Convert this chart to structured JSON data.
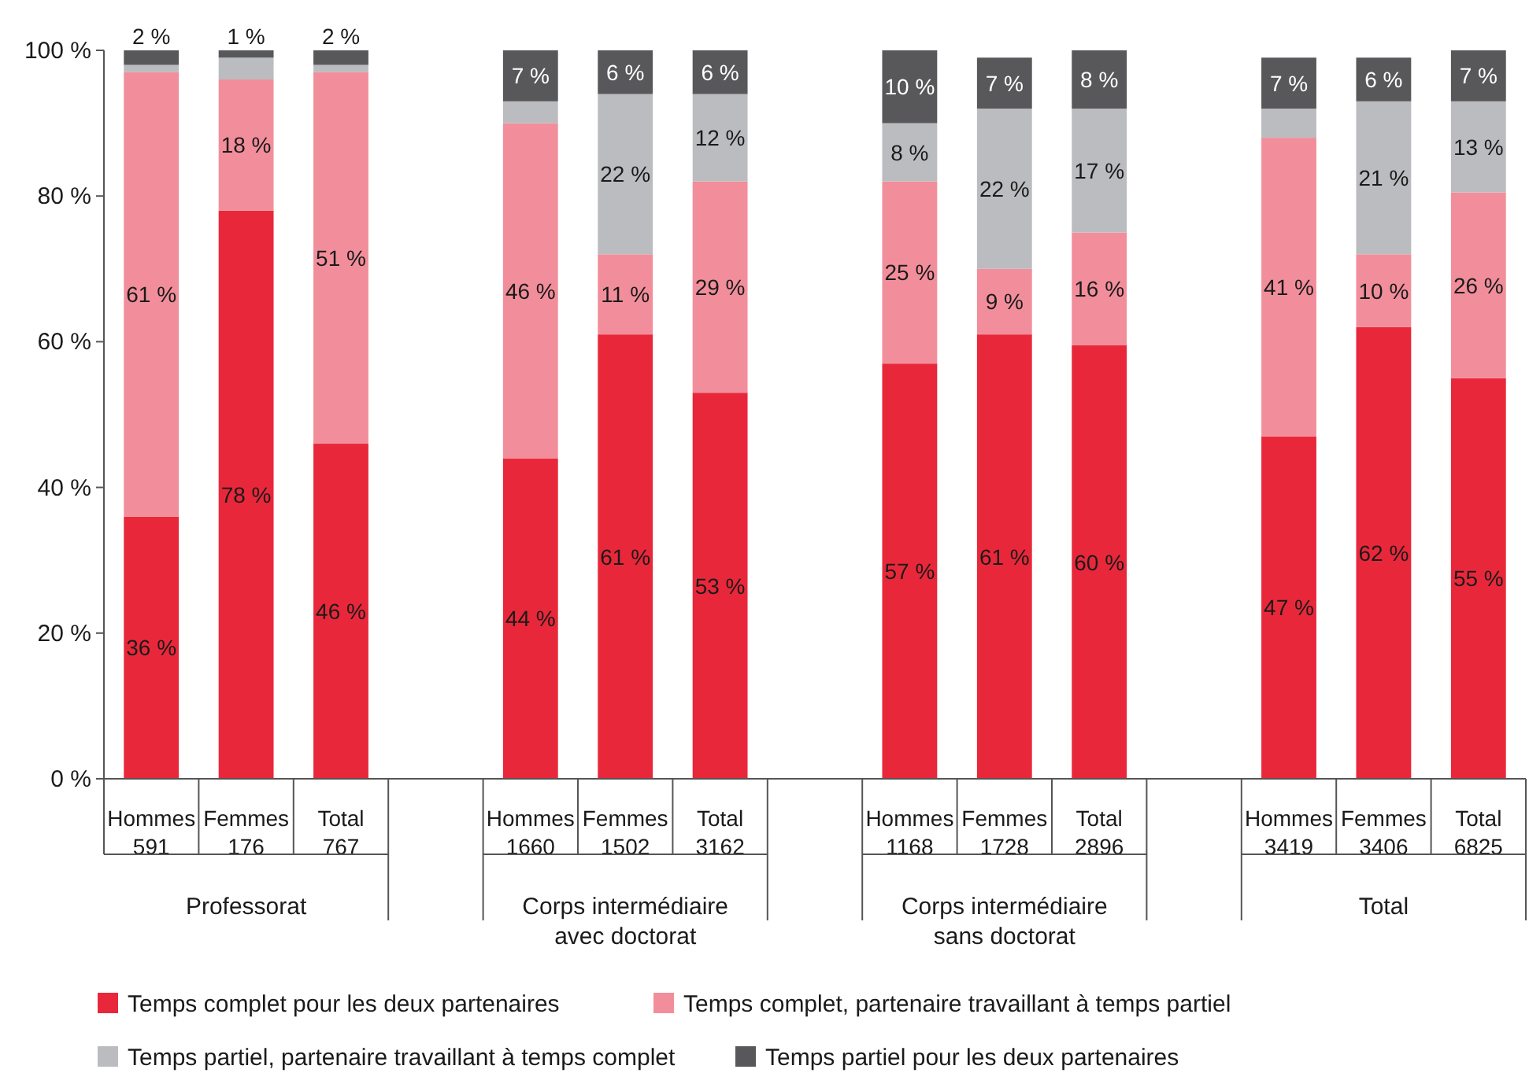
{
  "chart_data": {
    "type": "bar",
    "stacked": true,
    "categories": [
      "Hommes\n591",
      "Femmes\n176",
      "Total\n767",
      null,
      "Hommes\n1660",
      "Femmes\n1502",
      "Total\n3162",
      null,
      "Hommes\n1168",
      "Femmes\n1728",
      "Total\n2896",
      null,
      "Hommes\n3419",
      "Femmes\n3406",
      "Total\n6825"
    ],
    "series": [
      {
        "name": "Temps complet pour les deux partenaires",
        "color": "#e8283a",
        "values": [
          36,
          78,
          46,
          null,
          44,
          61,
          53,
          null,
          57,
          61,
          59.5,
          null,
          47,
          62,
          55
        ],
        "value_labels": [
          "36 %",
          "78 %",
          "46 %",
          null,
          "44 %",
          "61 %",
          "53 %",
          null,
          "57 %",
          "61 %",
          "60 %",
          null,
          "47 %",
          "62 %",
          "55 %"
        ]
      },
      {
        "name": "Temps complet, partenaire travaillant à temps partiel",
        "color": "#f28e9b",
        "values": [
          61,
          18,
          51,
          null,
          46,
          11,
          29,
          null,
          25,
          9,
          15.5,
          null,
          41,
          10,
          25.5
        ],
        "value_labels": [
          "61 %",
          "18 %",
          "51 %",
          null,
          "46 %",
          "11 %",
          "29 %",
          null,
          "25 %",
          "9 %",
          "16 %",
          null,
          "41 %",
          "10 %",
          "26 %"
        ]
      },
      {
        "name": "Temps partiel, partenaire travaillant à temps complet",
        "color": "#bbbcbf",
        "values": [
          1,
          3,
          1,
          null,
          3,
          22,
          12,
          null,
          8,
          22,
          17,
          null,
          4,
          21,
          12.5
        ],
        "value_labels": [
          null,
          null,
          null,
          null,
          null,
          "22 %",
          "12 %",
          null,
          "8 %",
          "22 %",
          "17 %",
          null,
          null,
          "21 %",
          "13 %"
        ]
      },
      {
        "name": "Temps partiel pour les deux partenaires",
        "color": "#58585a",
        "values": [
          2,
          1,
          2,
          null,
          7,
          6,
          6,
          null,
          10,
          7,
          8,
          null,
          7,
          6,
          7
        ],
        "value_labels": [
          "2 %",
          "1 %",
          "2 %",
          null,
          "7 %",
          "6 %",
          "6 %",
          null,
          "10 %",
          "7 %",
          "8 %",
          null,
          "7 %",
          "6 %",
          "7 %"
        ]
      }
    ],
    "ylim": [
      0,
      100
    ],
    "yticks": [
      {
        "value": 0,
        "label": "0 %"
      },
      {
        "value": 20,
        "label": "20 %"
      },
      {
        "value": 40,
        "label": "40 %"
      },
      {
        "value": 60,
        "label": "60 %"
      },
      {
        "value": 80,
        "label": "80 %"
      },
      {
        "value": 100,
        "label": "100 %"
      }
    ],
    "annotations": [
      "Professorat",
      "Corps intermédiaire\navec doctorat",
      "Corps intermédiaire\nsans doctorat",
      "Total"
    ],
    "legend": "bottom",
    "grid": false
  }
}
